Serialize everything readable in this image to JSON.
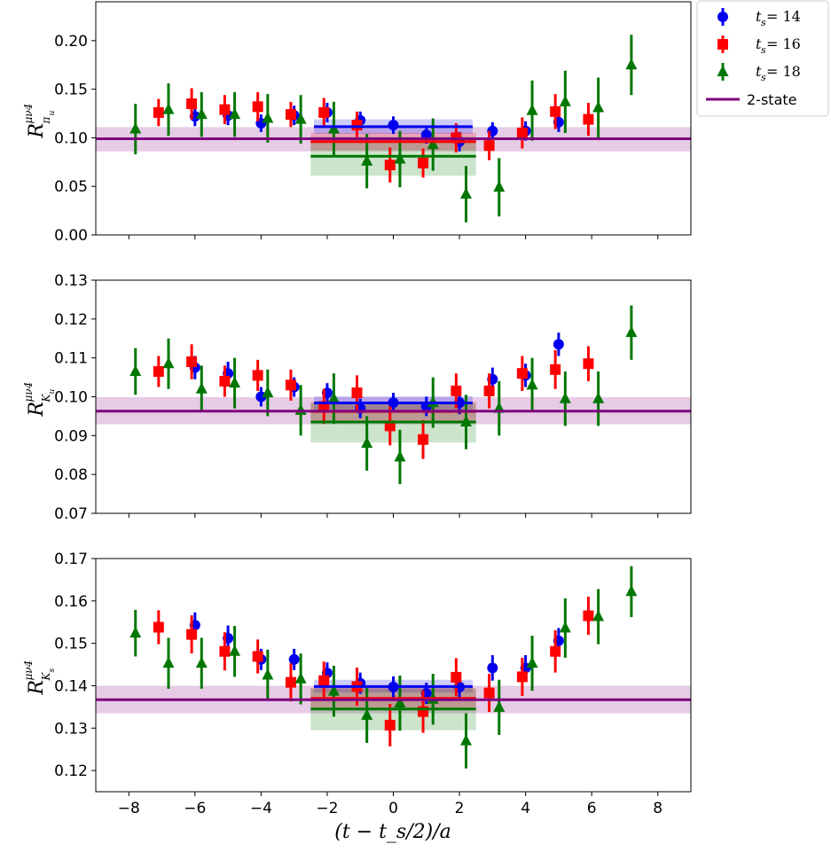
{
  "chart_data": [
    {
      "type": "scatter",
      "ylabel": {
        "main": "R",
        "sup": "μν4",
        "sub": "π",
        "subsub": "u"
      },
      "xlim": [
        -9,
        9
      ],
      "ylim": [
        0.0,
        0.24
      ],
      "yticks": [
        "0.00",
        "0.05",
        "0.10",
        "0.15",
        "0.20"
      ],
      "ytick_values": [
        0.0,
        0.05,
        0.1,
        0.15,
        0.2
      ],
      "series": [
        {
          "name": "ts14",
          "x": [
            -6,
            -5,
            -4,
            -3,
            -2,
            -1,
            0,
            1,
            2,
            3,
            4,
            5
          ],
          "y": [
            0.122,
            0.123,
            0.115,
            0.123,
            0.126,
            0.118,
            0.113,
            0.103,
            0.096,
            0.107,
            0.107,
            0.116
          ],
          "err": [
            0.01,
            0.01,
            0.009,
            0.01,
            0.01,
            0.009,
            0.009,
            0.009,
            0.01,
            0.009,
            0.01,
            0.01
          ]
        },
        {
          "name": "ts16",
          "x": [
            -7.1,
            -6.1,
            -5.1,
            -4.1,
            -3.1,
            -2.1,
            -1.1,
            -0.1,
            0.9,
            1.9,
            2.9,
            3.9,
            4.9,
            5.9
          ],
          "y": [
            0.126,
            0.135,
            0.129,
            0.132,
            0.124,
            0.126,
            0.113,
            0.072,
            0.074,
            0.1,
            0.092,
            0.105,
            0.127,
            0.119
          ],
          "err": [
            0.014,
            0.016,
            0.015,
            0.015,
            0.013,
            0.015,
            0.014,
            0.018,
            0.015,
            0.015,
            0.015,
            0.016,
            0.018,
            0.017
          ]
        },
        {
          "name": "ts18",
          "x": [
            -7.8,
            -6.8,
            -5.8,
            -4.8,
            -3.8,
            -2.8,
            -1.8,
            -0.8,
            0.2,
            1.2,
            2.2,
            3.2,
            4.2,
            5.2,
            6.2,
            7.2
          ],
          "y": [
            0.109,
            0.129,
            0.124,
            0.124,
            0.12,
            0.119,
            0.109,
            0.076,
            0.078,
            0.093,
            0.042,
            0.049,
            0.128,
            0.137,
            0.131,
            0.175
          ],
          "err": [
            0.026,
            0.027,
            0.023,
            0.023,
            0.025,
            0.025,
            0.028,
            0.028,
            0.029,
            0.027,
            0.029,
            0.03,
            0.031,
            0.032,
            0.031,
            0.031
          ]
        }
      ],
      "plateaus": [
        {
          "series": "ts14",
          "x": [
            -2.4,
            2.4
          ],
          "y": 0.1115,
          "band": [
            0.104,
            0.119
          ]
        },
        {
          "series": "ts16",
          "x": [
            -2.5,
            2.5
          ],
          "y": 0.096,
          "band": [
            0.087,
            0.105
          ]
        },
        {
          "series": "ts18",
          "x": [
            -2.5,
            2.5
          ],
          "y": 0.081,
          "band": [
            0.061,
            0.101
          ]
        }
      ],
      "two_state": {
        "y": 0.099,
        "band": [
          0.086,
          0.111
        ]
      }
    },
    {
      "type": "scatter",
      "ylabel": {
        "main": "R",
        "sup": "μν4",
        "sub": "K",
        "subsub": "u"
      },
      "xlim": [
        -9,
        9
      ],
      "ylim": [
        0.07,
        0.13
      ],
      "yticks": [
        "0.07",
        "0.08",
        "0.09",
        "0.10",
        "0.11",
        "0.12",
        "0.13"
      ],
      "ytick_values": [
        0.07,
        0.08,
        0.09,
        0.1,
        0.11,
        0.12,
        0.13
      ],
      "series": [
        {
          "name": "ts14",
          "x": [
            -6,
            -5,
            -4,
            -3,
            -2,
            -1,
            0,
            1,
            2,
            3,
            4,
            5
          ],
          "y": [
            0.1075,
            0.106,
            0.1,
            0.1025,
            0.101,
            0.097,
            0.0985,
            0.0975,
            0.0985,
            0.1045,
            0.1055,
            0.1135
          ],
          "err": [
            0.003,
            0.003,
            0.0025,
            0.0025,
            0.0025,
            0.0025,
            0.0025,
            0.0025,
            0.003,
            0.003,
            0.003,
            0.003
          ]
        },
        {
          "name": "ts16",
          "x": [
            -7.1,
            -6.1,
            -5.1,
            -4.1,
            -3.1,
            -2.1,
            -1.1,
            -0.1,
            0.9,
            1.9,
            2.9,
            3.9,
            4.9,
            5.9
          ],
          "y": [
            0.1065,
            0.109,
            0.104,
            0.1055,
            0.103,
            0.0975,
            0.101,
            0.0925,
            0.089,
            0.1015,
            0.1015,
            0.106,
            0.107,
            0.1085
          ],
          "err": [
            0.004,
            0.0045,
            0.004,
            0.004,
            0.004,
            0.0045,
            0.0045,
            0.005,
            0.005,
            0.0045,
            0.0045,
            0.0045,
            0.005,
            0.0045
          ]
        },
        {
          "name": "ts18",
          "x": [
            -7.8,
            -6.8,
            -5.8,
            -4.8,
            -3.8,
            -2.8,
            -1.8,
            -0.8,
            0.2,
            1.2,
            2.2,
            3.2,
            4.2,
            5.2,
            6.2,
            7.2
          ],
          "y": [
            0.1065,
            0.1085,
            0.102,
            0.1035,
            0.101,
            0.0965,
            0.0995,
            0.088,
            0.0845,
            0.0985,
            0.0935,
            0.097,
            0.103,
            0.0995,
            0.0995,
            0.1165
          ],
          "err": [
            0.006,
            0.0065,
            0.006,
            0.0065,
            0.006,
            0.0065,
            0.0065,
            0.007,
            0.007,
            0.0065,
            0.007,
            0.007,
            0.007,
            0.007,
            0.007,
            0.007
          ]
        }
      ],
      "plateaus": [
        {
          "series": "ts14",
          "x": [
            -2.4,
            2.4
          ],
          "y": 0.0984,
          "band": [
            0.0967,
            0.1001
          ]
        },
        {
          "series": "ts16",
          "x": [
            -2.5,
            2.5
          ],
          "y": 0.0962,
          "band": [
            0.0937,
            0.0987
          ]
        },
        {
          "series": "ts18",
          "x": [
            -2.5,
            2.5
          ],
          "y": 0.0935,
          "band": [
            0.0882,
            0.0983
          ]
        }
      ],
      "two_state": {
        "y": 0.0963,
        "band": [
          0.0929,
          0.0999
        ]
      }
    },
    {
      "type": "scatter",
      "ylabel": {
        "main": "R",
        "sup": "μν4",
        "sub": "K",
        "subsub": "s"
      },
      "xlim": [
        -9,
        9
      ],
      "ylim": [
        0.115,
        0.17
      ],
      "yticks": [
        "0.12",
        "0.13",
        "0.14",
        "0.15",
        "0.16",
        "0.17"
      ],
      "ytick_values": [
        0.12,
        0.13,
        0.14,
        0.15,
        0.16,
        0.17
      ],
      "series": [
        {
          "name": "ts14",
          "x": [
            -6,
            -5,
            -4,
            -3,
            -2,
            -1,
            0,
            1,
            2,
            3,
            4,
            5
          ],
          "y": [
            0.1543,
            0.1512,
            0.1462,
            0.1462,
            0.143,
            0.1406,
            0.1397,
            0.1382,
            0.1397,
            0.1442,
            0.1442,
            0.1506
          ],
          "err": [
            0.003,
            0.003,
            0.0025,
            0.0025,
            0.0025,
            0.0025,
            0.0025,
            0.0025,
            0.0025,
            0.003,
            0.003,
            0.003
          ]
        },
        {
          "name": "ts16",
          "x": [
            -7.1,
            -6.1,
            -5.1,
            -4.1,
            -3.1,
            -2.1,
            -1.1,
            -0.1,
            0.9,
            1.9,
            2.9,
            3.9,
            4.9,
            5.9
          ],
          "y": [
            0.1538,
            0.1521,
            0.1481,
            0.1469,
            0.1408,
            0.1412,
            0.1398,
            0.1307,
            0.1339,
            0.142,
            0.1383,
            0.1421,
            0.1481,
            0.1565
          ],
          "err": [
            0.004,
            0.0045,
            0.0045,
            0.004,
            0.0045,
            0.0045,
            0.0045,
            0.005,
            0.005,
            0.0045,
            0.0045,
            0.0045,
            0.005,
            0.0045
          ]
        },
        {
          "name": "ts18",
          "x": [
            -7.8,
            -6.8,
            -5.8,
            -4.8,
            -3.8,
            -2.8,
            -1.8,
            -0.8,
            0.2,
            1.2,
            2.2,
            3.2,
            4.2,
            5.2,
            6.2,
            7.2
          ],
          "y": [
            0.1524,
            0.1453,
            0.1453,
            0.1481,
            0.1425,
            0.1416,
            0.1387,
            0.133,
            0.1359,
            0.1368,
            0.127,
            0.1349,
            0.1453,
            0.1536,
            0.1563,
            0.1622
          ],
          "err": [
            0.0055,
            0.006,
            0.006,
            0.006,
            0.006,
            0.006,
            0.006,
            0.0065,
            0.0065,
            0.006,
            0.0065,
            0.0065,
            0.0065,
            0.007,
            0.0065,
            0.006
          ]
        }
      ],
      "plateaus": [
        {
          "series": "ts14",
          "x": [
            -2.4,
            2.4
          ],
          "y": 0.1398,
          "band": [
            0.1384,
            0.1414
          ]
        },
        {
          "series": "ts16",
          "x": [
            -2.5,
            2.5
          ],
          "y": 0.137,
          "band": [
            0.1345,
            0.1395
          ]
        },
        {
          "series": "ts18",
          "x": [
            -2.5,
            2.5
          ],
          "y": 0.1345,
          "band": [
            0.1295,
            0.1393
          ]
        }
      ],
      "two_state": {
        "y": 0.1367,
        "band": [
          0.1335,
          0.14
        ]
      }
    }
  ],
  "xaxis": {
    "label": "(t − t_s/2)/a",
    "ticks": [
      "−8",
      "−6",
      "−4",
      "−2",
      "0",
      "2",
      "4",
      "6",
      "8"
    ],
    "tick_values": [
      -8,
      -6,
      -4,
      -2,
      0,
      2,
      4,
      6,
      8
    ]
  },
  "legend": {
    "placement": "top-right outside",
    "entries": [
      {
        "series": "ts14",
        "label_prefix": "t",
        "label_sub": "s",
        "label_suffix": " = 14",
        "color": "#0000ee",
        "marker": "circle"
      },
      {
        "series": "ts16",
        "label_prefix": "t",
        "label_sub": "s",
        "label_suffix": " = 16",
        "color": "#ff0000",
        "marker": "square"
      },
      {
        "series": "ts18",
        "label_prefix": "t",
        "label_sub": "s",
        "label_suffix": " = 18",
        "color": "#007700",
        "marker": "triangle"
      },
      {
        "series": "two_state",
        "label": "2-state",
        "color": "#800080",
        "marker": "line"
      }
    ]
  },
  "colors": {
    "ts14": "#0000ee",
    "ts16": "#ff0000",
    "ts18": "#007700",
    "two_state": "#800080"
  }
}
